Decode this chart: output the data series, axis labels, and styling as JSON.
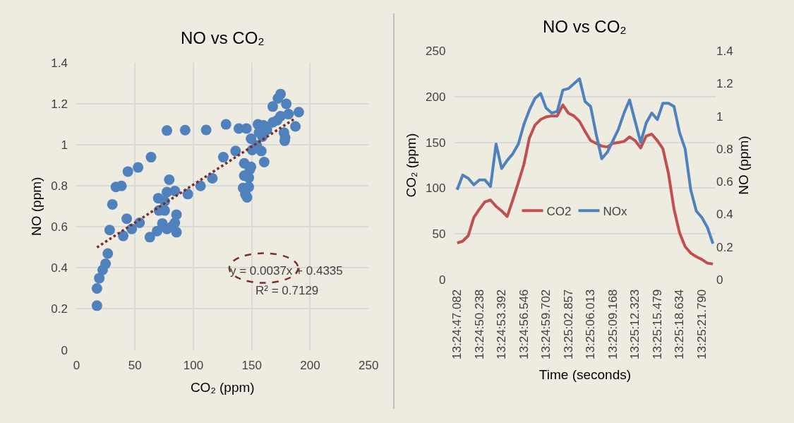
{
  "chart_data": [
    {
      "type": "scatter",
      "title": "NO vs CO₂",
      "xlabel": "CO₂ (ppm)",
      "ylabel": "NO (ppm)",
      "xlim": [
        0,
        250
      ],
      "xticks": [
        0,
        50,
        100,
        150,
        200,
        250
      ],
      "ylim": [
        0,
        1.4
      ],
      "yticks": [
        0,
        0.2,
        0.4,
        0.6,
        0.8,
        1,
        1.2,
        1.4
      ],
      "grid": true,
      "legend": false,
      "annotations": [
        "y = 0.0037x + 0.4335",
        "R² = 0.7129"
      ],
      "series": [
        {
          "color": "#4f81bd",
          "marker": "circle",
          "x": [
            17.5,
            17.5,
            19.5,
            22.4,
            24.9,
            26.8,
            28.4,
            30.7,
            33.7,
            38.5,
            40,
            43,
            44,
            47.3,
            52.7,
            54,
            62.8,
            63.8,
            69,
            70,
            70.6,
            75.5,
            73.5,
            75.5,
            77.4,
            77.4,
            77.4,
            79.4,
            81.3,
            84.2,
            84.2,
            85.6,
            85.6,
            93,
            95.3,
            106.2,
            111,
            116.3,
            125.7,
            128,
            136.2,
            139,
            143.6,
            143.6,
            142.6,
            144.5,
            146,
            147.5,
            147.5,
            148.4,
            149.4,
            145.5,
            149.4,
            150.4,
            154.3,
            155.3,
            156.2,
            158.2,
            159.1,
            160.1,
            160.7,
            163,
            168,
            168,
            171.8,
            172.4,
            174.7,
            174.7,
            177.6,
            178.2,
            178.6,
            179.6,
            181.5,
            187.4,
            190.3
          ],
          "values": [
            0.216,
            0.3,
            0.35,
            0.39,
            0.42,
            0.47,
            0.585,
            0.71,
            0.795,
            0.8,
            0.556,
            0.64,
            0.87,
            0.59,
            0.89,
            0.62,
            0.55,
            0.94,
            0.58,
            0.74,
            0.68,
            0.68,
            0.617,
            0.725,
            0.77,
            1.07,
            0.59,
            0.83,
            0.6,
            0.775,
            0.62,
            0.66,
            0.574,
            1.072,
            0.76,
            0.8,
            1.073,
            0.837,
            0.94,
            1.1,
            0.97,
            1.08,
            0.91,
            0.85,
            0.79,
            0.76,
            0.744,
            0.795,
            0.84,
            0.88,
            0.893,
            1.08,
            1.03,
            0.975,
            0.998,
            1.1,
            1.06,
            0.97,
            1.04,
            1.095,
            0.916,
            1.074,
            1.11,
            1.187,
            1.12,
            1.227,
            1.248,
            1.14,
            1.06,
            1.02,
            1.036,
            1.2,
            1.15,
            1.09,
            1.16
          ]
        },
        {
          "type": "line",
          "color": "#7b2c2c",
          "line_style": "dotted",
          "x": [
            17.5,
            187.4
          ],
          "values": [
            0.5,
            1.13
          ]
        }
      ]
    },
    {
      "type": "line",
      "title": "NO vs CO₂",
      "xlabel": "Time (seconds)",
      "ylabel": "CO₂ (ppm)",
      "y2label": "NO (ppm)",
      "ylim": [
        0,
        250
      ],
      "yticks": [
        0,
        50,
        100,
        150,
        200,
        250
      ],
      "y2lim": [
        0,
        1.4
      ],
      "y2ticks": [
        0,
        0.2,
        0.4,
        0.6,
        0.8,
        1,
        1.2,
        1.4
      ],
      "grid": "y",
      "legend": "center left",
      "categories": [
        "13:24:47.082",
        null,
        null,
        null,
        "13:24:50.238",
        null,
        null,
        null,
        "13:24:53.392",
        null,
        null,
        null,
        "13:24:56.546",
        null,
        null,
        null,
        "13:24:59.702",
        null,
        null,
        null,
        "13:25:02.857",
        null,
        null,
        null,
        "13:25:06.013",
        null,
        null,
        null,
        "13:25:09.168",
        null,
        null,
        null,
        "13:25:12.323",
        null,
        null,
        null,
        "13:25:15.479",
        null,
        null,
        null,
        "13:25:18.634",
        null,
        null,
        null,
        "13:25:21.790",
        null,
        null
      ],
      "series": [
        {
          "name": "CO2",
          "color": "#c0504d",
          "values": [
            40,
            42,
            48,
            68,
            77,
            85,
            87,
            80,
            75,
            69,
            87,
            106,
            126,
            155,
            169,
            175,
            178,
            179,
            179,
            191,
            182,
            179,
            173,
            162,
            152,
            149,
            146,
            145,
            149,
            150,
            151,
            156,
            152,
            144,
            157,
            159,
            152,
            143,
            116,
            77,
            51,
            36,
            29,
            25,
            22,
            18,
            17
          ]
        },
        {
          "name": "NOx",
          "color": "#4f81bd",
          "axis": "y2",
          "values": [
            0.55,
            0.64,
            0.62,
            0.58,
            0.61,
            0.61,
            0.57,
            0.83,
            0.68,
            0.73,
            0.77,
            0.83,
            0.95,
            1.04,
            1.11,
            1.14,
            1.05,
            1.02,
            1.03,
            1.16,
            1.17,
            1.2,
            1.23,
            1.09,
            1.06,
            0.89,
            0.74,
            0.78,
            0.85,
            0.92,
            1.02,
            1.1,
            0.97,
            0.84,
            0.96,
            1.02,
            0.98,
            1.08,
            1.08,
            1.06,
            0.9,
            0.8,
            0.55,
            0.42,
            0.38,
            0.32,
            0.22
          ]
        }
      ]
    }
  ]
}
